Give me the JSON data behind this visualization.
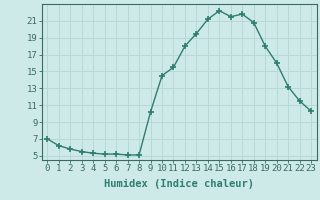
{
  "x": [
    0,
    1,
    2,
    3,
    4,
    5,
    6,
    7,
    8,
    9,
    10,
    11,
    12,
    13,
    14,
    15,
    16,
    17,
    18,
    19,
    20,
    21,
    22,
    23
  ],
  "y": [
    7.0,
    6.2,
    5.8,
    5.5,
    5.3,
    5.2,
    5.2,
    5.1,
    5.1,
    10.2,
    14.5,
    15.5,
    18.0,
    19.5,
    21.2,
    22.2,
    21.5,
    21.8,
    20.8,
    18.0,
    16.0,
    13.2,
    11.5,
    10.3
  ],
  "xlabel": "Humidex (Indice chaleur)",
  "ylim": [
    4.5,
    23.0
  ],
  "xlim": [
    -0.5,
    23.5
  ],
  "yticks": [
    5,
    7,
    9,
    11,
    13,
    15,
    17,
    19,
    21
  ],
  "xticks": [
    0,
    1,
    2,
    3,
    4,
    5,
    6,
    7,
    8,
    9,
    10,
    11,
    12,
    13,
    14,
    15,
    16,
    17,
    18,
    19,
    20,
    21,
    22,
    23
  ],
  "line_color": "#2e7d6e",
  "marker": "+",
  "marker_size": 4.0,
  "marker_lw": 1.2,
  "line_width": 1.0,
  "bg_color": "#ceeae8",
  "grid_color": "#b8d8d5",
  "axis_color": "#3a6b60",
  "xlabel_fontsize": 7.5,
  "tick_fontsize": 6.5
}
